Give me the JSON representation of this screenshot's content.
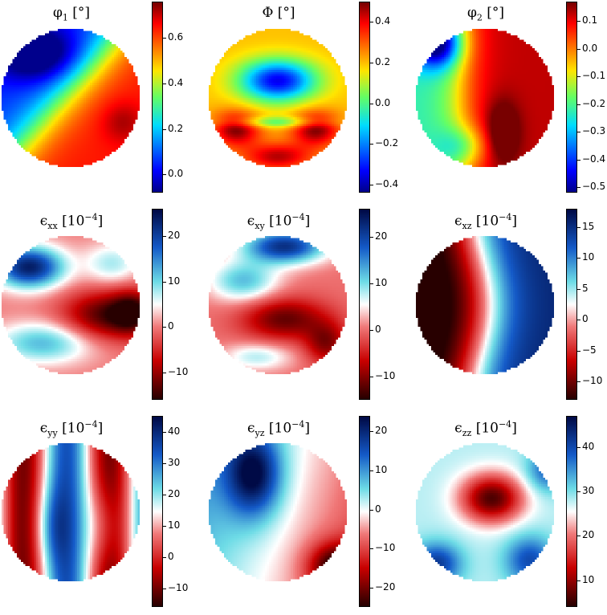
{
  "chart_data": [
    {
      "type": "heatmap",
      "quantity": "phi1",
      "title": "φ",
      "title_sub": "1",
      "title_unit": " [°]",
      "colormap": "jet",
      "clim": [
        -0.08,
        0.76
      ],
      "ticks": [
        {
          "value": 0.6,
          "label": "0.6"
        },
        {
          "value": 0.4,
          "label": "0.4"
        },
        {
          "value": 0.2,
          "label": "0.2"
        },
        {
          "value": 0.0,
          "label": "0.0"
        }
      ]
    },
    {
      "type": "heatmap",
      "quantity": "Phi",
      "title": "Φ",
      "title_sub": "",
      "title_unit": " [°]",
      "colormap": "jet",
      "clim": [
        -0.44,
        0.5
      ],
      "ticks": [
        {
          "value": 0.4,
          "label": "0.4"
        },
        {
          "value": 0.2,
          "label": "0.2"
        },
        {
          "value": 0.0,
          "label": "0.0"
        },
        {
          "value": -0.2,
          "label": "−0.2"
        },
        {
          "value": -0.4,
          "label": "−0.4"
        }
      ]
    },
    {
      "type": "heatmap",
      "quantity": "phi2",
      "title": "φ",
      "title_sub": "2",
      "title_unit": " [°]",
      "colormap": "jet",
      "clim": [
        -0.52,
        0.17
      ],
      "ticks": [
        {
          "value": 0.1,
          "label": "0.1"
        },
        {
          "value": 0.0,
          "label": "0.0"
        },
        {
          "value": -0.1,
          "label": "−0.1"
        },
        {
          "value": -0.2,
          "label": "−0.2"
        },
        {
          "value": -0.3,
          "label": "−0.3"
        },
        {
          "value": -0.4,
          "label": "−0.4"
        },
        {
          "value": -0.5,
          "label": "−0.5"
        }
      ]
    },
    {
      "type": "heatmap",
      "quantity": "exx",
      "title": "ϵ",
      "title_sub": "xx",
      "title_unit": " [10",
      "title_exp": "−4",
      "title_end": "]",
      "colormap": "redblue",
      "clim": [
        -16,
        26
      ],
      "ticks": [
        {
          "value": 20,
          "label": "20"
        },
        {
          "value": 10,
          "label": "10"
        },
        {
          "value": 0,
          "label": "0"
        },
        {
          "value": -10,
          "label": "−10"
        }
      ]
    },
    {
      "type": "heatmap",
      "quantity": "exy",
      "title": "ϵ",
      "title_sub": "xy",
      "title_unit": " [10",
      "title_exp": "−4",
      "title_end": "]",
      "colormap": "redblue",
      "clim": [
        -15,
        26
      ],
      "ticks": [
        {
          "value": 20,
          "label": "20"
        },
        {
          "value": 10,
          "label": "10"
        },
        {
          "value": 0,
          "label": "0"
        },
        {
          "value": -10,
          "label": "−10"
        }
      ]
    },
    {
      "type": "heatmap",
      "quantity": "exz",
      "title": "ϵ",
      "title_sub": "xz",
      "title_unit": " [10",
      "title_exp": "−4",
      "title_end": "]",
      "colormap": "redblue",
      "clim": [
        -13,
        18
      ],
      "ticks": [
        {
          "value": 15,
          "label": "15"
        },
        {
          "value": 10,
          "label": "10"
        },
        {
          "value": 5,
          "label": "5"
        },
        {
          "value": 0,
          "label": "0"
        },
        {
          "value": -5,
          "label": "−5"
        },
        {
          "value": -10,
          "label": "−10"
        }
      ]
    },
    {
      "type": "heatmap",
      "quantity": "eyy",
      "title": "ϵ",
      "title_sub": "yy",
      "title_unit": " [10",
      "title_exp": "−4",
      "title_end": "]",
      "colormap": "redblue",
      "clim": [
        -16,
        45
      ],
      "ticks": [
        {
          "value": 40,
          "label": "40"
        },
        {
          "value": 30,
          "label": "30"
        },
        {
          "value": 20,
          "label": "20"
        },
        {
          "value": 10,
          "label": "10"
        },
        {
          "value": 0,
          "label": "0"
        },
        {
          "value": -10,
          "label": "−10"
        }
      ]
    },
    {
      "type": "heatmap",
      "quantity": "eyz",
      "title": "ϵ",
      "title_sub": "yz",
      "title_unit": " [10",
      "title_exp": "−4",
      "title_end": "]",
      "colormap": "redblue",
      "clim": [
        -25,
        24
      ],
      "ticks": [
        {
          "value": 20,
          "label": "20"
        },
        {
          "value": 10,
          "label": "10"
        },
        {
          "value": 0,
          "label": "0"
        },
        {
          "value": -10,
          "label": "−10"
        },
        {
          "value": -20,
          "label": "−20"
        }
      ]
    },
    {
      "type": "heatmap",
      "quantity": "ezz",
      "title": "ϵ",
      "title_sub": "zz",
      "title_unit": " [10",
      "title_exp": "−4",
      "title_end": "]",
      "colormap": "redblue",
      "clim": [
        4,
        47
      ],
      "ticks": [
        {
          "value": 40,
          "label": "40"
        },
        {
          "value": 30,
          "label": "30"
        },
        {
          "value": 20,
          "label": "20"
        },
        {
          "value": 10,
          "label": "10"
        }
      ]
    }
  ]
}
